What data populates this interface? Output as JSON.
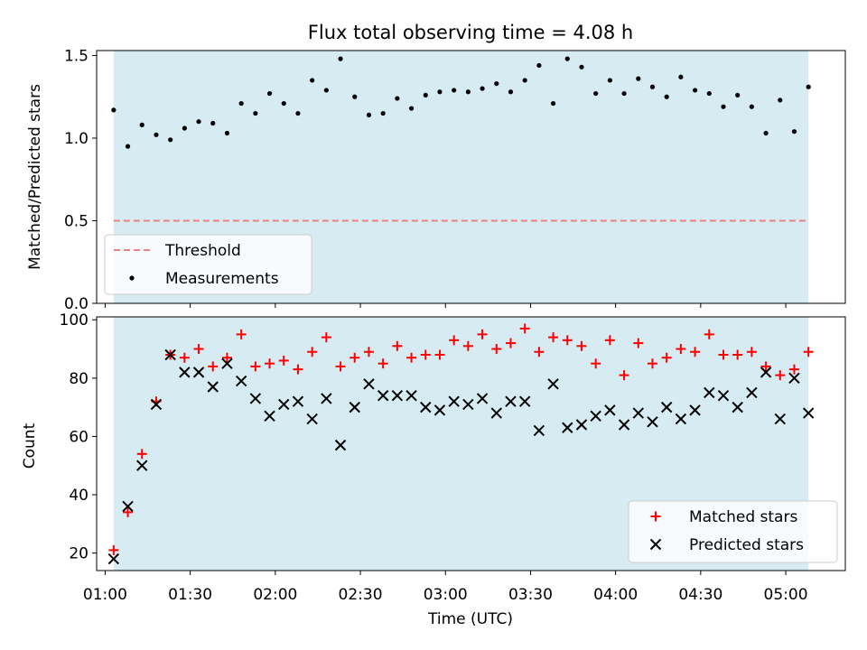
{
  "title": "Flux total observing time = 4.08 h",
  "xlabel": "Time (UTC)",
  "x_ticks": [
    "01:00",
    "01:30",
    "02:00",
    "02:30",
    "03:00",
    "03:30",
    "04:00",
    "04:30",
    "05:00"
  ],
  "shade_color": "#add8e6",
  "colors": {
    "threshold": "#f08080",
    "measurements": "#000000",
    "matched": "#ff0000",
    "predicted": "#000000"
  },
  "chart_data": [
    {
      "type": "scatter",
      "ylabel": "Matched/Predicted stars",
      "ylim": [
        0.0,
        1.53
      ],
      "xlim": [
        "00:57",
        "05:21"
      ],
      "y_ticks": [
        "0.0",
        "0.5",
        "1.0",
        "1.5"
      ],
      "shaded_interval": [
        "01:03",
        "05:08"
      ],
      "threshold": {
        "name": "Threshold",
        "value": 0.5,
        "style": "dashed"
      },
      "legend_position": "lower-left",
      "series": [
        {
          "name": "Measurements",
          "marker": "dot",
          "points": [
            [
              "01:03",
              1.17
            ],
            [
              "01:08",
              0.95
            ],
            [
              "01:13",
              1.08
            ],
            [
              "01:18",
              1.02
            ],
            [
              "01:23",
              0.99
            ],
            [
              "01:28",
              1.06
            ],
            [
              "01:33",
              1.1
            ],
            [
              "01:38",
              1.09
            ],
            [
              "01:43",
              1.03
            ],
            [
              "01:48",
              1.21
            ],
            [
              "01:53",
              1.15
            ],
            [
              "01:58",
              1.27
            ],
            [
              "02:03",
              1.21
            ],
            [
              "02:08",
              1.15
            ],
            [
              "02:13",
              1.35
            ],
            [
              "02:18",
              1.29
            ],
            [
              "02:23",
              1.48
            ],
            [
              "02:28",
              1.25
            ],
            [
              "02:33",
              1.14
            ],
            [
              "02:38",
              1.15
            ],
            [
              "02:43",
              1.24
            ],
            [
              "02:48",
              1.18
            ],
            [
              "02:53",
              1.26
            ],
            [
              "02:58",
              1.28
            ],
            [
              "03:03",
              1.29
            ],
            [
              "03:08",
              1.28
            ],
            [
              "03:13",
              1.3
            ],
            [
              "03:18",
              1.33
            ],
            [
              "03:23",
              1.28
            ],
            [
              "03:28",
              1.35
            ],
            [
              "03:33",
              1.44
            ],
            [
              "03:38",
              1.21
            ],
            [
              "03:43",
              1.48
            ],
            [
              "03:48",
              1.43
            ],
            [
              "03:53",
              1.27
            ],
            [
              "03:58",
              1.35
            ],
            [
              "04:03",
              1.27
            ],
            [
              "04:08",
              1.36
            ],
            [
              "04:13",
              1.31
            ],
            [
              "04:18",
              1.25
            ],
            [
              "04:23",
              1.37
            ],
            [
              "04:28",
              1.29
            ],
            [
              "04:33",
              1.27
            ],
            [
              "04:38",
              1.19
            ],
            [
              "04:43",
              1.26
            ],
            [
              "04:48",
              1.19
            ],
            [
              "04:53",
              1.03
            ],
            [
              "04:58",
              1.23
            ],
            [
              "05:03",
              1.04
            ],
            [
              "05:08",
              1.31
            ]
          ]
        }
      ]
    },
    {
      "type": "scatter",
      "ylabel": "Count",
      "ylim": [
        14,
        101
      ],
      "xlim": [
        "00:57",
        "05:21"
      ],
      "y_ticks": [
        "20",
        "40",
        "60",
        "80",
        "100"
      ],
      "shaded_interval": [
        "01:03",
        "05:08"
      ],
      "legend_position": "lower-right",
      "series": [
        {
          "name": "Matched stars",
          "marker": "plus",
          "points": [
            [
              "01:03",
              21
            ],
            [
              "01:08",
              34
            ],
            [
              "01:13",
              54
            ],
            [
              "01:18",
              72
            ],
            [
              "01:23",
              88
            ],
            [
              "01:28",
              87
            ],
            [
              "01:33",
              90
            ],
            [
              "01:38",
              84
            ],
            [
              "01:43",
              87
            ],
            [
              "01:48",
              95
            ],
            [
              "01:53",
              84
            ],
            [
              "01:58",
              85
            ],
            [
              "02:03",
              86
            ],
            [
              "02:08",
              83
            ],
            [
              "02:13",
              89
            ],
            [
              "02:18",
              94
            ],
            [
              "02:23",
              84
            ],
            [
              "02:28",
              87
            ],
            [
              "02:33",
              89
            ],
            [
              "02:38",
              85
            ],
            [
              "02:43",
              91
            ],
            [
              "02:48",
              87
            ],
            [
              "02:53",
              88
            ],
            [
              "02:58",
              88
            ],
            [
              "03:03",
              93
            ],
            [
              "03:08",
              91
            ],
            [
              "03:13",
              95
            ],
            [
              "03:18",
              90
            ],
            [
              "03:23",
              92
            ],
            [
              "03:28",
              97
            ],
            [
              "03:33",
              89
            ],
            [
              "03:38",
              94
            ],
            [
              "03:43",
              93
            ],
            [
              "03:48",
              91
            ],
            [
              "03:53",
              85
            ],
            [
              "03:58",
              93
            ],
            [
              "04:03",
              81
            ],
            [
              "04:08",
              92
            ],
            [
              "04:13",
              85
            ],
            [
              "04:18",
              87
            ],
            [
              "04:23",
              90
            ],
            [
              "04:28",
              89
            ],
            [
              "04:33",
              95
            ],
            [
              "04:38",
              88
            ],
            [
              "04:43",
              88
            ],
            [
              "04:48",
              89
            ],
            [
              "04:53",
              84
            ],
            [
              "04:58",
              81
            ],
            [
              "05:03",
              83
            ],
            [
              "05:08",
              89
            ]
          ]
        },
        {
          "name": "Predicted stars",
          "marker": "x",
          "points": [
            [
              "01:03",
              18
            ],
            [
              "01:08",
              36
            ],
            [
              "01:13",
              50
            ],
            [
              "01:18",
              71
            ],
            [
              "01:23",
              88
            ],
            [
              "01:28",
              82
            ],
            [
              "01:33",
              82
            ],
            [
              "01:38",
              77
            ],
            [
              "01:43",
              85
            ],
            [
              "01:48",
              79
            ],
            [
              "01:53",
              73
            ],
            [
              "01:58",
              67
            ],
            [
              "02:03",
              71
            ],
            [
              "02:08",
              72
            ],
            [
              "02:13",
              66
            ],
            [
              "02:18",
              73
            ],
            [
              "02:23",
              57
            ],
            [
              "02:28",
              70
            ],
            [
              "02:33",
              78
            ],
            [
              "02:38",
              74
            ],
            [
              "02:43",
              74
            ],
            [
              "02:48",
              74
            ],
            [
              "02:53",
              70
            ],
            [
              "02:58",
              69
            ],
            [
              "03:03",
              72
            ],
            [
              "03:08",
              71
            ],
            [
              "03:13",
              73
            ],
            [
              "03:18",
              68
            ],
            [
              "03:23",
              72
            ],
            [
              "03:28",
              72
            ],
            [
              "03:33",
              62
            ],
            [
              "03:38",
              78
            ],
            [
              "03:43",
              63
            ],
            [
              "03:48",
              64
            ],
            [
              "03:53",
              67
            ],
            [
              "03:58",
              69
            ],
            [
              "04:03",
              64
            ],
            [
              "04:08",
              68
            ],
            [
              "04:13",
              65
            ],
            [
              "04:18",
              70
            ],
            [
              "04:23",
              66
            ],
            [
              "04:28",
              69
            ],
            [
              "04:33",
              75
            ],
            [
              "04:38",
              74
            ],
            [
              "04:43",
              70
            ],
            [
              "04:48",
              75
            ],
            [
              "04:53",
              82
            ],
            [
              "04:58",
              66
            ],
            [
              "05:03",
              80
            ],
            [
              "05:08",
              68
            ]
          ]
        }
      ]
    }
  ]
}
